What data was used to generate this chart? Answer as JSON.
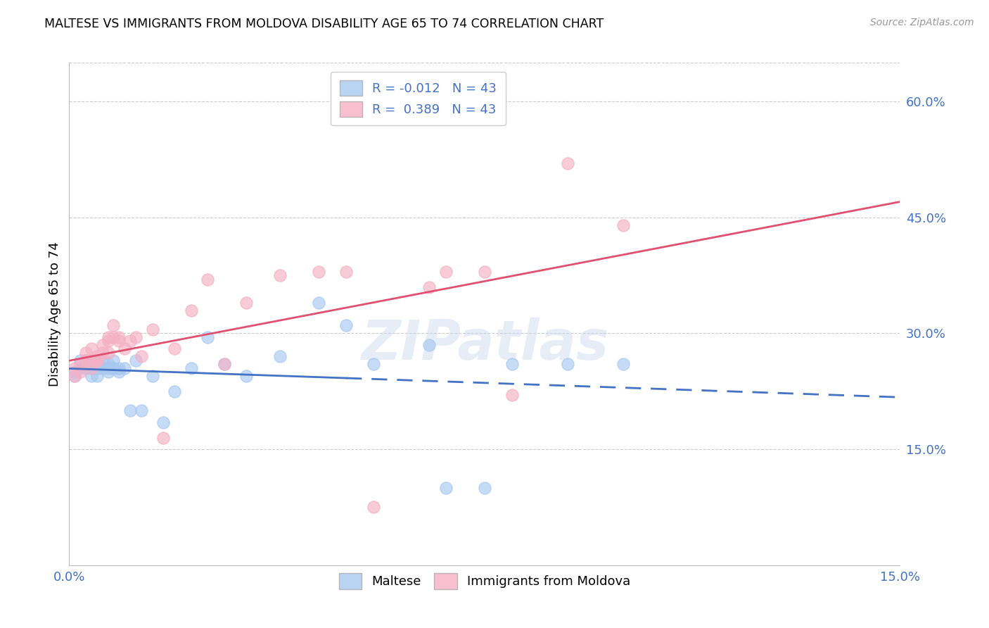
{
  "title": "MALTESE VS IMMIGRANTS FROM MOLDOVA DISABILITY AGE 65 TO 74 CORRELATION CHART",
  "source": "Source: ZipAtlas.com",
  "ylabel": "Disability Age 65 to 74",
  "xlim": [
    0.0,
    0.15
  ],
  "ylim": [
    0.0,
    0.65
  ],
  "ytick_positions": [
    0.15,
    0.3,
    0.45,
    0.6
  ],
  "ytick_labels": [
    "15.0%",
    "30.0%",
    "45.0%",
    "60.0%"
  ],
  "legend_label1": "Maltese",
  "legend_label2": "Immigrants from Moldova",
  "r1": "-0.012",
  "n1": "43",
  "r2": "0.389",
  "n2": "43",
  "maltese_color": "#a8c8f0",
  "moldova_color": "#f5b0c5",
  "maltese_line_color": "#4472c4",
  "moldova_line_color": "#e05070",
  "watermark": "ZIPatlas",
  "maltese_x": [
    0.001,
    0.001,
    0.002,
    0.002,
    0.003,
    0.003,
    0.003,
    0.004,
    0.004,
    0.004,
    0.005,
    0.005,
    0.005,
    0.006,
    0.006,
    0.007,
    0.007,
    0.007,
    0.008,
    0.008,
    0.009,
    0.009,
    0.01,
    0.011,
    0.012,
    0.013,
    0.015,
    0.017,
    0.019,
    0.022,
    0.025,
    0.028,
    0.032,
    0.038,
    0.045,
    0.05,
    0.055,
    0.065,
    0.068,
    0.075,
    0.08,
    0.09,
    0.1
  ],
  "maltese_y": [
    0.25,
    0.245,
    0.255,
    0.265,
    0.265,
    0.255,
    0.26,
    0.26,
    0.255,
    0.245,
    0.255,
    0.245,
    0.26,
    0.265,
    0.255,
    0.255,
    0.26,
    0.25,
    0.265,
    0.255,
    0.255,
    0.25,
    0.255,
    0.2,
    0.265,
    0.2,
    0.245,
    0.185,
    0.225,
    0.255,
    0.295,
    0.26,
    0.245,
    0.27,
    0.34,
    0.31,
    0.26,
    0.285,
    0.1,
    0.1,
    0.26,
    0.26,
    0.26
  ],
  "moldova_x": [
    0.001,
    0.001,
    0.002,
    0.002,
    0.003,
    0.003,
    0.003,
    0.004,
    0.004,
    0.004,
    0.005,
    0.005,
    0.005,
    0.006,
    0.006,
    0.007,
    0.007,
    0.007,
    0.008,
    0.008,
    0.009,
    0.009,
    0.01,
    0.011,
    0.012,
    0.013,
    0.015,
    0.017,
    0.019,
    0.022,
    0.025,
    0.028,
    0.032,
    0.038,
    0.045,
    0.05,
    0.055,
    0.065,
    0.068,
    0.075,
    0.08,
    0.09,
    0.1
  ],
  "moldova_y": [
    0.255,
    0.245,
    0.26,
    0.25,
    0.265,
    0.275,
    0.265,
    0.265,
    0.28,
    0.255,
    0.27,
    0.265,
    0.265,
    0.285,
    0.275,
    0.29,
    0.295,
    0.275,
    0.31,
    0.295,
    0.295,
    0.29,
    0.28,
    0.29,
    0.295,
    0.27,
    0.305,
    0.165,
    0.28,
    0.33,
    0.37,
    0.26,
    0.34,
    0.375,
    0.38,
    0.38,
    0.075,
    0.36,
    0.38,
    0.38,
    0.22,
    0.52,
    0.44
  ]
}
